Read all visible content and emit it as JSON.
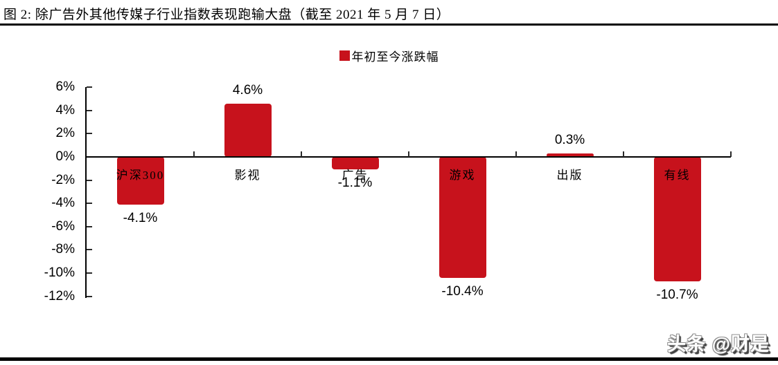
{
  "page": {
    "title": "图 2: 除广告外其他传媒子行业指数表现跑输大盘（截至 2021 年 5 月 7 日）",
    "watermark": "头条 @财是"
  },
  "chart_data": {
    "type": "bar",
    "title": "",
    "legend": [
      "年初至今涨跌幅"
    ],
    "legend_position": "top-center",
    "categories": [
      "沪深300",
      "影视",
      "广告",
      "游戏",
      "出版",
      "有线"
    ],
    "values": [
      -4.1,
      4.6,
      -1.1,
      -10.4,
      0.3,
      -10.7
    ],
    "value_labels": [
      "-4.1%",
      "4.6%",
      "-1.1%",
      "-10.4%",
      "0.3%",
      "-10.7%"
    ],
    "ylabel": "",
    "xlabel": "",
    "ylim": [
      -12,
      6
    ],
    "ytick_step": 2,
    "ytick_labels": [
      "6%",
      "4%",
      "2%",
      "0%",
      "-2%",
      "-4%",
      "-6%",
      "-8%",
      "-10%",
      "-12%"
    ],
    "bar_color": "#C7121C",
    "axis_color": "#000000",
    "grid": false
  }
}
